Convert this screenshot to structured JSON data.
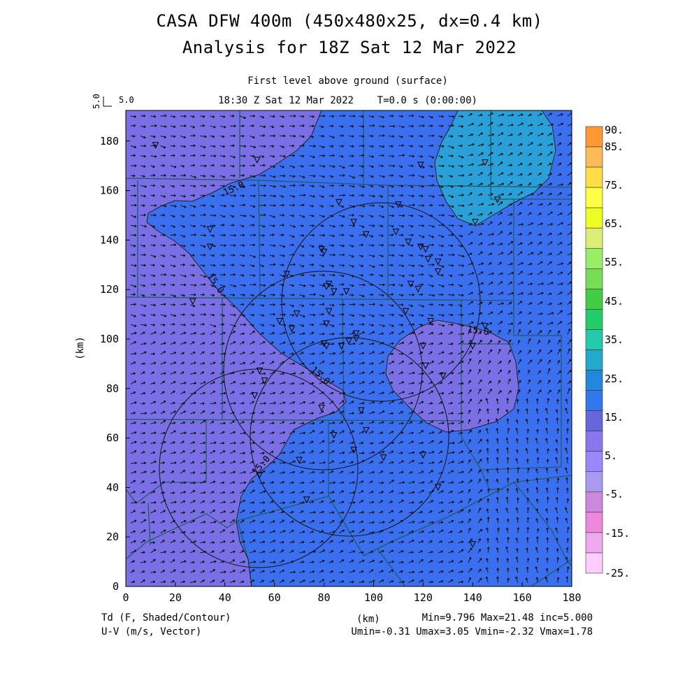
{
  "header": {
    "title_line1": "CASA DFW 400m (450x480x25, dx=0.4 km)",
    "title_line2": "Analysis for 18Z Sat 12 Mar 2022",
    "subtitle_level": "First level above ground (surface)",
    "subtitle_time": "18:30 Z Sat 12 Mar 2022    T=0.0 s (0:00:00)"
  },
  "vector_scale": {
    "vertical_label": "5.0",
    "horizontal_label": "5.0"
  },
  "axes": {
    "x_label": "(km)",
    "y_label": "(km)",
    "x_ticks": [
      "0",
      "20",
      "40",
      "60",
      "80",
      "100",
      "120",
      "140",
      "160",
      "180"
    ],
    "y_ticks": [
      "0",
      "20",
      "40",
      "60",
      "80",
      "100",
      "120",
      "140",
      "160",
      "180"
    ]
  },
  "colorbar": {
    "labels": [
      "90.",
      "85.",
      "75.",
      "65.",
      "55.",
      "45.",
      "35.",
      "25.",
      "15.",
      "5.",
      "-5.",
      "-15.",
      "-25."
    ],
    "colors": [
      "#ff9933",
      "#ffbb55",
      "#ffdd44",
      "#ffff44",
      "#eeff22",
      "#ddee77",
      "#99ee66",
      "#77dd55",
      "#44cc44",
      "#22cc66",
      "#22ccaa",
      "#22aacc",
      "#2288dd",
      "#3377ee",
      "#6666dd",
      "#8877ee",
      "#9988ff",
      "#aa99ee",
      "#cc88dd",
      "#ee88dd",
      "#eeaaee",
      "#ffccff"
    ]
  },
  "footer": {
    "field_line1": "Td (F, Shaded/Contour)",
    "field_line2": "U-V (m/s, Vector)",
    "x_unit": "(km)",
    "stats_line1": "Min=9.796 Max=21.48 inc=5.000",
    "stats_line2": "Umin=-0.31 Umax=3.05 Vmin=-2.32 Vmax=1.78"
  },
  "contour_label": "15.0",
  "map": {
    "region_colors": {
      "low": "#7b6fe6",
      "mid": "#3a6ff0",
      "high": "#2aa0d8"
    }
  }
}
